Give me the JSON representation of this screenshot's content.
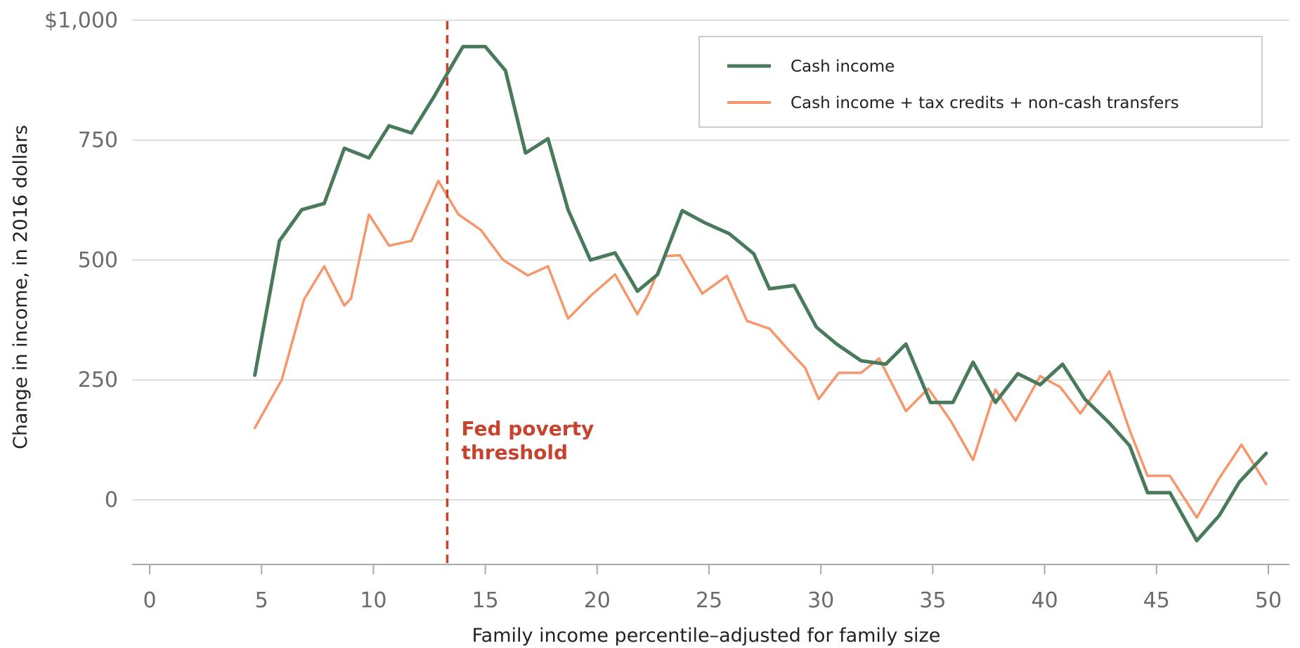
{
  "chart_data": {
    "type": "line",
    "xlabel": "Family income percentile–adjusted for family size",
    "ylabel": "Change in income, in 2016 dollars",
    "xlim": [
      -1,
      51.5
    ],
    "ylim": [
      -135,
      1000
    ],
    "x_ticks": [
      0,
      5,
      10,
      15,
      20,
      25,
      30,
      35,
      40,
      45,
      50
    ],
    "x_tick_labels": [
      "0",
      "5",
      "10",
      "15",
      "20",
      "25",
      "30",
      "35",
      "40",
      "45",
      "50"
    ],
    "y_ticks": [
      0,
      250,
      500,
      750,
      1000
    ],
    "y_tick_labels": [
      "0",
      "250",
      "500",
      "750",
      "$1,000"
    ],
    "grid": "horizontal",
    "legend_position": "top-right",
    "series": [
      {
        "name": "Cash income",
        "color": "#4a7a5c",
        "points": [
          [
            4.7,
            260
          ],
          [
            5.8,
            540
          ],
          [
            6.8,
            605
          ],
          [
            7.8,
            618
          ],
          [
            8.7,
            733
          ],
          [
            9.8,
            713
          ],
          [
            10.7,
            780
          ],
          [
            11.7,
            765
          ],
          [
            12.7,
            840
          ],
          [
            13.5,
            905
          ],
          [
            14,
            945
          ],
          [
            15,
            945
          ],
          [
            15.9,
            895
          ],
          [
            16.8,
            723
          ],
          [
            17.8,
            753
          ],
          [
            18.7,
            605
          ],
          [
            19.7,
            500
          ],
          [
            20.8,
            515
          ],
          [
            21.8,
            435
          ],
          [
            22.7,
            470
          ],
          [
            23.8,
            603
          ],
          [
            24.8,
            578
          ],
          [
            25.9,
            555
          ],
          [
            27,
            513
          ],
          [
            27.7,
            440
          ],
          [
            28.8,
            447
          ],
          [
            29.8,
            360
          ],
          [
            30.7,
            325
          ],
          [
            31.8,
            290
          ],
          [
            32.9,
            283
          ],
          [
            33.8,
            325
          ],
          [
            34.9,
            203
          ],
          [
            35.9,
            203
          ],
          [
            36.8,
            287
          ],
          [
            37.8,
            203
          ],
          [
            38.8,
            263
          ],
          [
            39.8,
            240
          ],
          [
            40.8,
            283
          ],
          [
            41.8,
            210
          ],
          [
            42.9,
            160
          ],
          [
            43.8,
            113
          ],
          [
            44.6,
            15
          ],
          [
            45.6,
            15
          ],
          [
            46.8,
            -85
          ],
          [
            47.8,
            -33
          ],
          [
            48.7,
            37
          ],
          [
            49.9,
            97
          ]
        ]
      },
      {
        "name": "Cash income + tax credits + non-cash transfers",
        "color": "#f5966b",
        "points": [
          [
            4.7,
            150
          ],
          [
            5.9,
            250
          ],
          [
            6.9,
            418
          ],
          [
            7.8,
            487
          ],
          [
            8.7,
            405
          ],
          [
            9,
            420
          ],
          [
            9.8,
            595
          ],
          [
            10.7,
            530
          ],
          [
            11.7,
            540
          ],
          [
            12.9,
            665
          ],
          [
            13.8,
            595
          ],
          [
            14.8,
            563
          ],
          [
            15.8,
            500
          ],
          [
            16.9,
            468
          ],
          [
            17.8,
            487
          ],
          [
            18.7,
            378
          ],
          [
            19.7,
            425
          ],
          [
            20.8,
            470
          ],
          [
            21.8,
            387
          ],
          [
            22.3,
            430
          ],
          [
            23,
            508
          ],
          [
            23.7,
            510
          ],
          [
            24.7,
            430
          ],
          [
            25.8,
            467
          ],
          [
            26.7,
            373
          ],
          [
            27.7,
            357
          ],
          [
            28.6,
            310
          ],
          [
            29.3,
            275
          ],
          [
            29.9,
            210
          ],
          [
            30.8,
            265
          ],
          [
            31.8,
            265
          ],
          [
            32.6,
            295
          ],
          [
            33.8,
            185
          ],
          [
            34.8,
            232
          ],
          [
            35.8,
            165
          ],
          [
            36.8,
            83
          ],
          [
            37.8,
            230
          ],
          [
            38.7,
            165
          ],
          [
            39.8,
            258
          ],
          [
            40.7,
            235
          ],
          [
            41.6,
            180
          ],
          [
            42.9,
            268
          ],
          [
            43.8,
            145
          ],
          [
            44.6,
            50
          ],
          [
            45.6,
            50
          ],
          [
            46.8,
            -37
          ],
          [
            47.8,
            45
          ],
          [
            48.8,
            115
          ],
          [
            49.9,
            33
          ]
        ]
      }
    ],
    "annotations": [
      {
        "type": "vertical-line",
        "x": 13.3,
        "color": "#c8432d",
        "style": "dashed",
        "label": "Fed poverty threshold",
        "label_lines": [
          "Fed poverty",
          "threshold"
        ]
      }
    ]
  }
}
